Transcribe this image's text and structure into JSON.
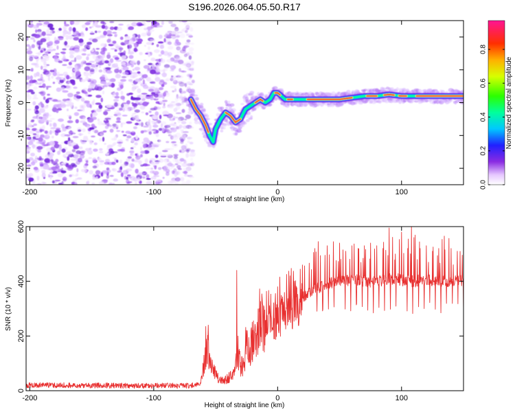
{
  "chart_data": [
    {
      "type": "heatmap",
      "title": "S196.2026.064.05.50.R17",
      "xlabel": "Height of straight line (km)",
      "ylabel": "Frequency (Hz)",
      "xlim": [
        -203,
        150
      ],
      "ylim": [
        -25,
        25
      ],
      "xticks": [
        -200,
        -100,
        0,
        100
      ],
      "xtick_labels": [
        "-200",
        "-100",
        "0",
        "100"
      ],
      "yticks": [
        20,
        10,
        0,
        -10,
        -20
      ],
      "ytick_labels": [
        "20",
        "10",
        "0",
        "-10",
        "-20"
      ],
      "colorbar": {
        "label": "Normalized spectral amplitude",
        "range": [
          0,
          0.97
        ],
        "ticks": [
          0.0,
          0.2,
          0.4,
          0.6,
          0.8
        ],
        "tick_labels": [
          "0.0",
          "0.2",
          "0.4",
          "0.6",
          "0.8"
        ]
      },
      "signal_trace": {
        "x": [
          -70,
          -66,
          -62,
          -58,
          -55,
          -52,
          -50,
          -46,
          -42,
          -38,
          -34,
          -30,
          -26,
          -22,
          -18,
          -14,
          -10,
          -6,
          -3,
          0,
          3,
          6,
          10,
          14,
          20,
          30,
          40,
          50,
          60,
          70,
          80,
          90,
          100,
          110,
          120,
          130,
          140,
          150
        ],
        "y": [
          1,
          -2,
          -4,
          -7,
          -10,
          -12,
          -8,
          -5,
          -3,
          -4,
          -6,
          -5,
          -2,
          -1,
          0,
          1,
          0,
          1,
          3,
          3,
          2,
          1,
          1,
          1,
          1,
          1,
          1,
          1,
          1.5,
          2,
          2,
          2.5,
          2,
          2,
          2,
          2,
          2,
          2
        ],
        "note": "high-amplitude ridge (red/yellow) along this trace for x > -60 km; diffuse low-amplitude speckle (purple) for x < -70 km"
      }
    },
    {
      "type": "line",
      "title": "",
      "xlabel": "Height of straight line (km)",
      "ylabel": "SNR (10 * v/v)",
      "xlim": [
        -203,
        150
      ],
      "ylim": [
        0,
        600
      ],
      "xticks": [
        -200,
        -100,
        0,
        100
      ],
      "xtick_labels": [
        "-200",
        "-100",
        "0",
        "100"
      ],
      "yticks": [
        0,
        200,
        400,
        600
      ],
      "ytick_labels": [
        "0",
        "200",
        "400",
        "600"
      ],
      "series": [
        {
          "name": "SNR",
          "color": "#e83030",
          "envelope_x": [
            -203,
            -160,
            -120,
            -80,
            -65,
            -62,
            -60,
            -57,
            -55,
            -52,
            -50,
            -47,
            -44,
            -40,
            -35,
            -32,
            -30,
            -27,
            -25,
            -22,
            -20,
            -17,
            -15,
            -10,
            -5,
            0,
            5,
            10,
            15,
            20,
            30,
            40,
            50,
            60,
            70,
            80,
            90,
            100,
            110,
            120,
            130,
            140,
            150
          ],
          "envelope_y": [
            20,
            20,
            18,
            18,
            20,
            30,
            80,
            150,
            110,
            80,
            60,
            40,
            35,
            45,
            60,
            130,
            90,
            100,
            200,
            160,
            190,
            170,
            230,
            240,
            255,
            260,
            290,
            300,
            320,
            340,
            370,
            390,
            400,
            405,
            400,
            400,
            410,
            405,
            400,
            405,
            400,
            400,
            400
          ],
          "spike_x": [
            -58,
            -56,
            -33,
            -32,
            -15,
            0,
            10,
            20,
            30,
            40,
            45,
            50,
            55,
            60,
            65,
            70,
            75,
            80,
            85,
            90,
            95,
            100,
            105,
            108,
            110,
            115,
            120,
            125,
            130,
            135,
            140,
            145
          ],
          "spike_y": [
            235,
            240,
            440,
            200,
            300,
            380,
            420,
            460,
            520,
            530,
            545,
            540,
            510,
            530,
            520,
            530,
            540,
            530,
            520,
            595,
            500,
            580,
            520,
            600,
            560,
            520,
            530,
            510,
            520,
            515,
            520,
            510
          ]
        }
      ]
    }
  ]
}
